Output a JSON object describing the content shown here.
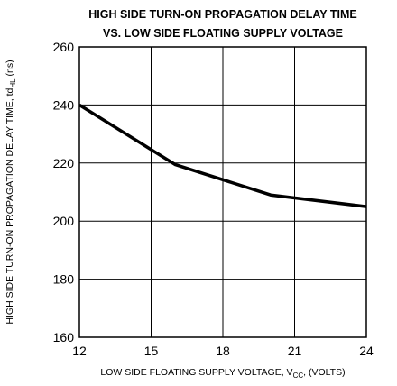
{
  "chart_data": {
    "type": "line",
    "title": [
      "HIGH SIDE TURN-ON PROPAGATION DELAY TIME",
      "VS. LOW SIDE FLOATING SUPPLY VOLTAGE"
    ],
    "x_label": [
      "LOW SIDE FLOATING SUPPLY VOLTAGE, V",
      "CC",
      ", (VOLTS)"
    ],
    "y_label": [
      "HIGH SIDE TURN-ON PROPAGATION DELAY TIME, td",
      "HL",
      " (ns)"
    ],
    "x": [
      12,
      16,
      20,
      24
    ],
    "series": [
      {
        "color": "#000000",
        "values": [
          240,
          219.5,
          209,
          205
        ]
      }
    ],
    "xlim": [
      12,
      24
    ],
    "xticks": [
      12,
      15,
      18,
      21,
      24
    ],
    "ylim": [
      160,
      260
    ],
    "yticks": [
      160,
      180,
      200,
      220,
      240,
      260
    ],
    "grid": true
  }
}
